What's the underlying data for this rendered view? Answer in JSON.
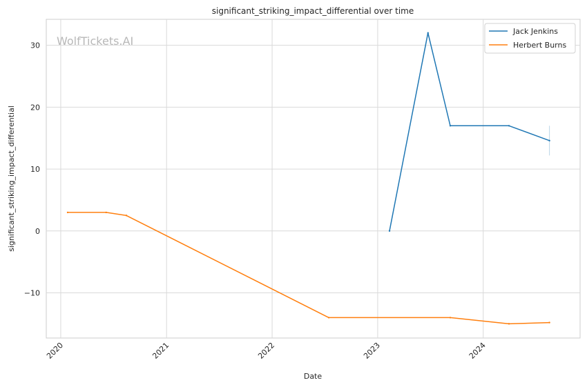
{
  "chart_data": {
    "type": "line",
    "title": "significant_striking_impact_differential over time",
    "xlabel": "Date",
    "ylabel": "significant_striking_impact_differential",
    "watermark": "WolfTickets.AI",
    "x_tick_labels": [
      "2020",
      "2021",
      "2022",
      "2023",
      "2024"
    ],
    "y_tick_labels": [
      "−10",
      "0",
      "10",
      "20",
      "30"
    ],
    "y_ticks": [
      -10,
      0,
      10,
      20,
      30
    ],
    "xlim": [
      "2019-11-12",
      "2024-12-01"
    ],
    "ylim": [
      -17.3,
      34.2
    ],
    "grid": true,
    "legend_position": "top-right",
    "series": [
      {
        "name": "Jack Jenkins",
        "color": "#1f77b4",
        "points": [
          {
            "x": "2023-02-11",
            "y": 0
          },
          {
            "x": "2023-06-24",
            "y": 32
          },
          {
            "x": "2023-09-09",
            "y": 17
          },
          {
            "x": "2024-03-30",
            "y": 17
          },
          {
            "x": "2024-08-17",
            "y": 14.6
          }
        ],
        "error_band": {
          "x": "2024-08-17",
          "low": 12.2,
          "high": 17
        }
      },
      {
        "name": "Herbert Burns",
        "color": "#ff7f0e",
        "points": [
          {
            "x": "2020-01-25",
            "y": 3
          },
          {
            "x": "2020-06-06",
            "y": 3
          },
          {
            "x": "2020-08-15",
            "y": 2.5
          },
          {
            "x": "2022-07-16",
            "y": -14
          },
          {
            "x": "2023-09-09",
            "y": -14
          },
          {
            "x": "2024-03-30",
            "y": -15
          },
          {
            "x": "2024-08-17",
            "y": -14.8
          }
        ]
      }
    ]
  }
}
